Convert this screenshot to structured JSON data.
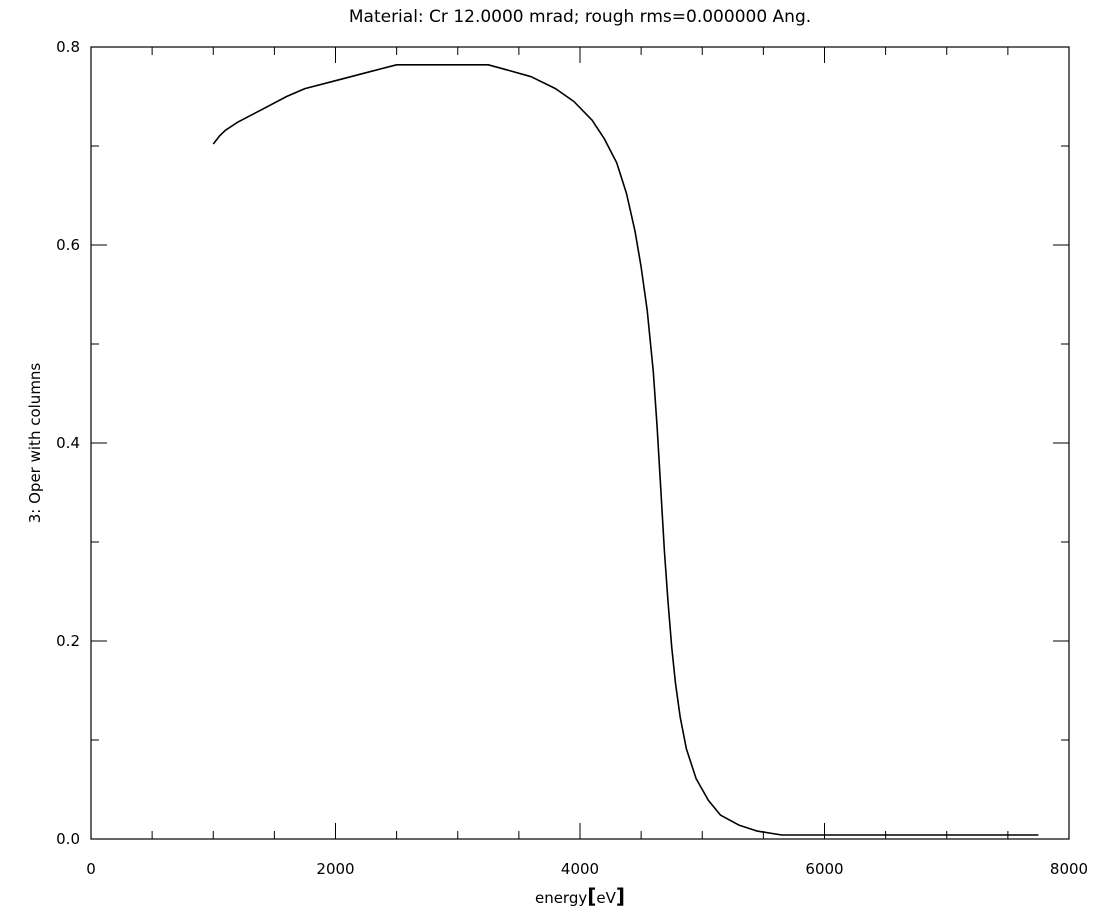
{
  "chart_data": {
    "type": "line",
    "title": "Material: Cr 12.0000 mrad; rough rms=0.000000 Ang.",
    "xlabel_prefix": "energy",
    "xlabel_bracket_open": "[",
    "xlabel_unit": "eV",
    "xlabel_bracket_close": "]",
    "ylabel": "3: Oper with columns",
    "xlim": [
      0,
      8000
    ],
    "ylim": [
      0.0,
      0.8
    ],
    "x_ticks": [
      0,
      2000,
      4000,
      6000,
      8000
    ],
    "x_tick_labels": [
      "0",
      "2000",
      "4000",
      "6000",
      "8000"
    ],
    "y_ticks": [
      0.0,
      0.2,
      0.4,
      0.6,
      0.8
    ],
    "y_tick_labels": [
      "0.0",
      "0.2",
      "0.4",
      "0.6",
      "0.8"
    ],
    "x_minor_step": 500,
    "y_minor_step": 0.1,
    "grid": false,
    "legend": "none",
    "line_color": "#000000",
    "series": [
      {
        "x": [
          1000,
          1050,
          1100,
          1200,
          1400,
          1600,
          1750,
          2000,
          2250,
          2500,
          2750,
          3000,
          3250,
          3400,
          3600,
          3800,
          3950,
          4100,
          4200,
          4300,
          4380,
          4450,
          4500,
          4550,
          4600,
          4630,
          4660,
          4690,
          4720,
          4750,
          4780,
          4820,
          4870,
          4950,
          5050,
          5150,
          5300,
          5450,
          5650,
          6000,
          6500,
          7000,
          7500,
          7750
        ],
        "y": [
          0.702,
          0.71,
          0.716,
          0.724,
          0.737,
          0.75,
          0.758,
          0.766,
          0.774,
          0.782,
          0.782,
          0.782,
          0.782,
          0.777,
          0.77,
          0.758,
          0.745,
          0.726,
          0.707,
          0.683,
          0.652,
          0.614,
          0.578,
          0.534,
          0.472,
          0.418,
          0.355,
          0.291,
          0.24,
          0.194,
          0.158,
          0.123,
          0.091,
          0.061,
          0.039,
          0.024,
          0.014,
          0.008,
          0.004,
          0.004,
          0.004,
          0.004,
          0.004,
          0.004
        ]
      }
    ]
  }
}
